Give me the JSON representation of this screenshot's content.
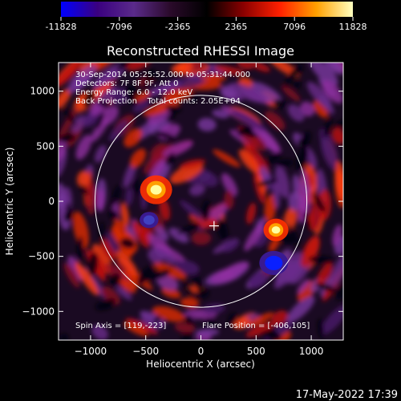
{
  "chart_data": {
    "type": "heatmap",
    "title": "Reconstructed RHESSI Image",
    "xlabel": "Heliocentric X (arcsec)",
    "ylabel": "Heliocentric Y (arcsec)",
    "xlim": [
      -1290,
      1290
    ],
    "ylim": [
      -1260,
      1260
    ],
    "x_ticks": [
      -1000,
      -500,
      0,
      500,
      1000
    ],
    "y_ticks": [
      -1000,
      -500,
      0,
      500,
      1000
    ],
    "colorbar": {
      "ticks": [
        "-11828",
        "-7096",
        "-2365",
        "2365",
        "7096",
        "11828"
      ],
      "range": [
        -11828,
        11828
      ],
      "colors": [
        "#0000ff",
        "#3a0080",
        "#5a2a8a",
        "#2a0a2a",
        "#000000",
        "#8a0000",
        "#ff2000",
        "#ffa000",
        "#ffffc0"
      ]
    },
    "annotations": [
      "30-Sep-2014 05:25:52.000 to 05:31:44.000",
      "Detectors: 7F 8F 9F, Att 0",
      "Energy Range: 6.0 - 12.0 keV",
      "Back Projection    Total counts: 2.05E+04"
    ],
    "spin_axis": "Spin Axis = [119,-223]",
    "flare_position": "Flare Position = [-406,105]",
    "solar_disk": {
      "center": [
        0,
        0
      ],
      "radius": 960
    },
    "sources": [
      {
        "kind": "positive",
        "x": -406,
        "y": 105,
        "value": 11828
      },
      {
        "kind": "positive",
        "x": 680,
        "y": -260,
        "value": 8500
      },
      {
        "kind": "negative",
        "x": 660,
        "y": -560,
        "value": -11828
      },
      {
        "kind": "negative",
        "x": -470,
        "y": -170,
        "value": -6500
      }
    ],
    "spin_axis_marker": [
      119,
      -223
    ],
    "timestamp": "17-May-2022 17:39"
  }
}
